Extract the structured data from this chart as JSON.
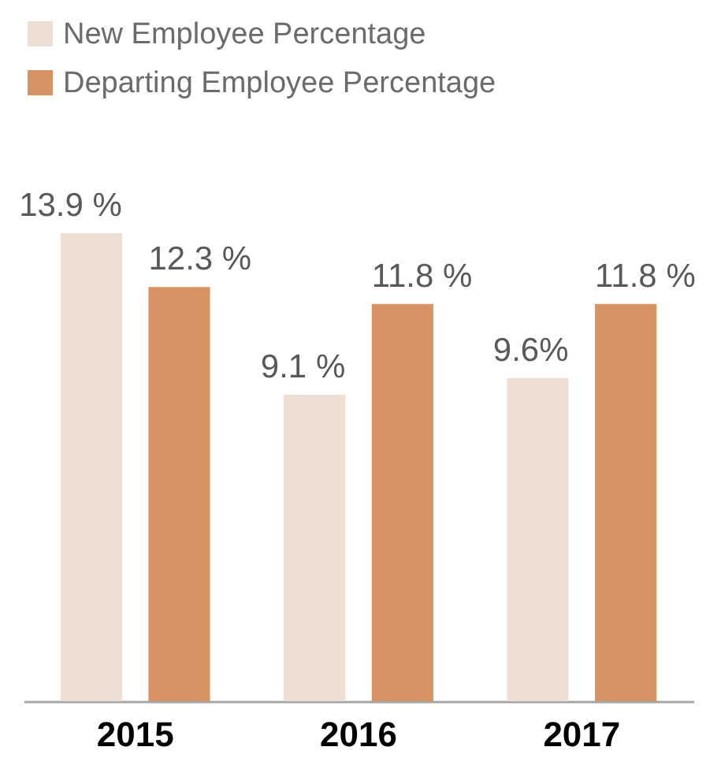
{
  "chart_data": {
    "type": "bar",
    "categories": [
      "2015",
      "2016",
      "2017"
    ],
    "series": [
      {
        "name": "New Employee Percentage",
        "color": "#eddfd3",
        "values": [
          13.9,
          9.1,
          9.6
        ],
        "value_labels": [
          "13.9 %",
          "9.1 %",
          "9.6%"
        ]
      },
      {
        "name": "Departing Employee Percentage",
        "color": "#d79363",
        "values": [
          12.3,
          11.8,
          11.8
        ],
        "value_labels": [
          "12.3 %",
          "11.8 %",
          "11.8 %"
        ]
      }
    ],
    "legend": "top left",
    "tick_labels": "x"
  }
}
